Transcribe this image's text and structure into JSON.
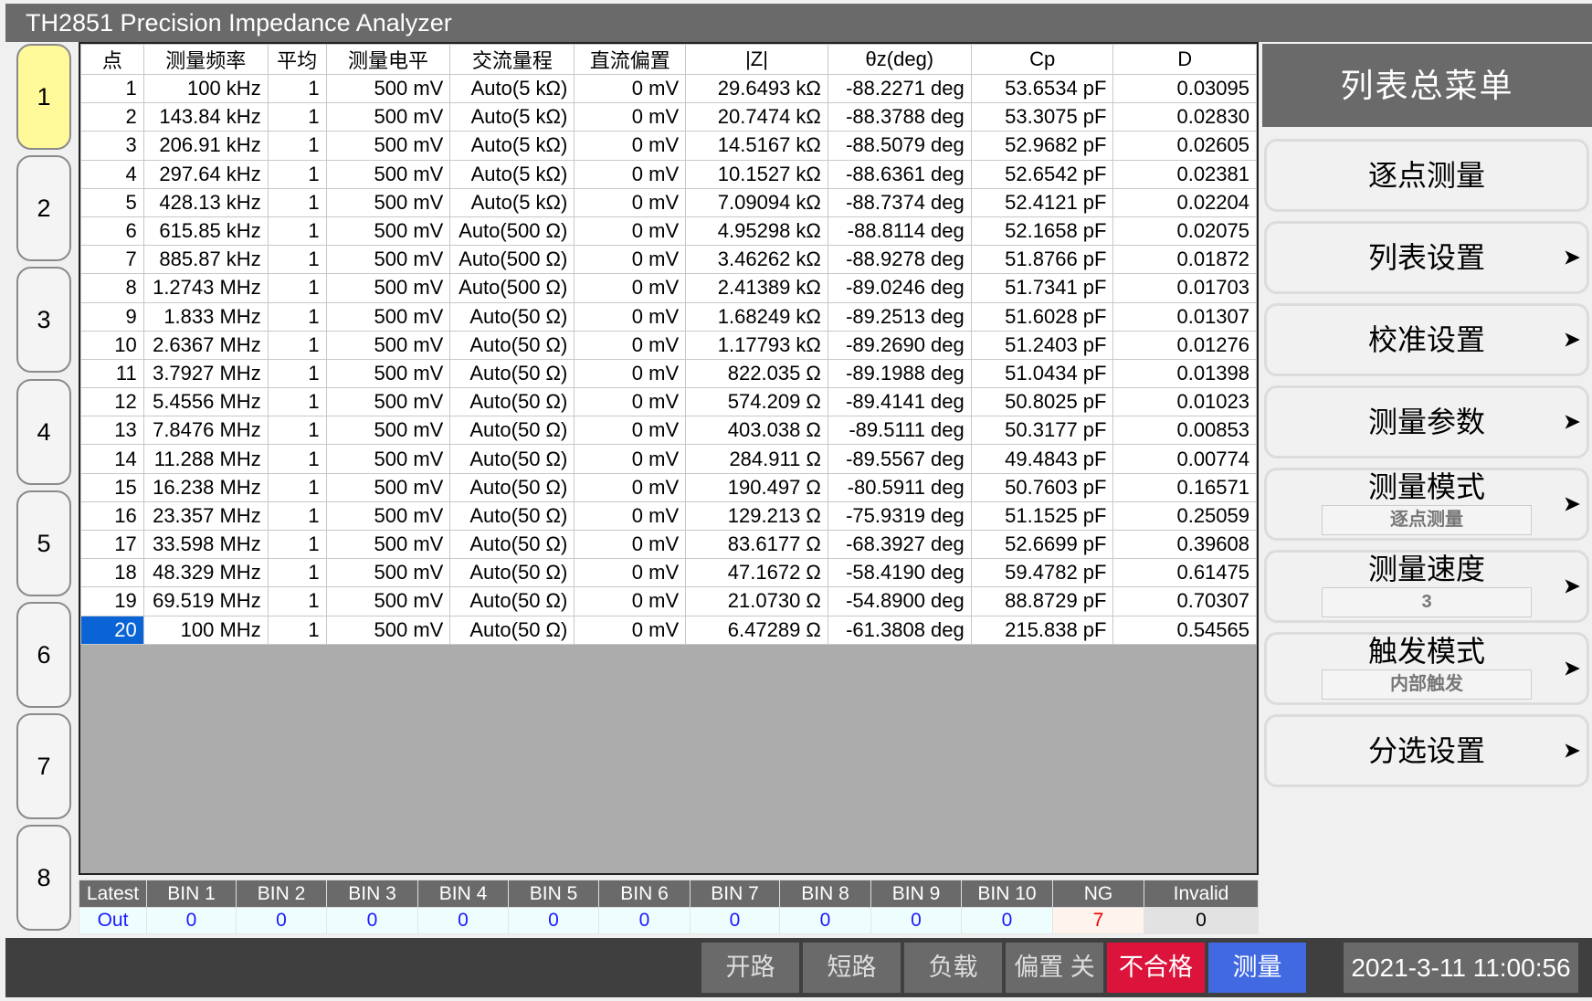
{
  "window": {
    "title": "TH2851 Precision Impedance Analyzer"
  },
  "left_nav": {
    "pages": [
      "1",
      "2",
      "3",
      "4",
      "5",
      "6",
      "7",
      "8"
    ],
    "active_index": 0
  },
  "table": {
    "columns": [
      "点",
      "测量频率",
      "平均",
      "测量电平",
      "交流量程",
      "直流偏置",
      "|Z|",
      "θz(deg)",
      "Cp",
      "D"
    ],
    "selected_row": 19,
    "rows": [
      [
        "1",
        "100 kHz",
        "1",
        "500 mV",
        "Auto(5 kΩ)",
        "0 mV",
        "29.6493 kΩ",
        "-88.2271 deg",
        "53.6534 pF",
        "0.03095"
      ],
      [
        "2",
        "143.84 kHz",
        "1",
        "500 mV",
        "Auto(5 kΩ)",
        "0 mV",
        "20.7474 kΩ",
        "-88.3788 deg",
        "53.3075 pF",
        "0.02830"
      ],
      [
        "3",
        "206.91 kHz",
        "1",
        "500 mV",
        "Auto(5 kΩ)",
        "0 mV",
        "14.5167 kΩ",
        "-88.5079 deg",
        "52.9682 pF",
        "0.02605"
      ],
      [
        "4",
        "297.64 kHz",
        "1",
        "500 mV",
        "Auto(5 kΩ)",
        "0 mV",
        "10.1527 kΩ",
        "-88.6361 deg",
        "52.6542 pF",
        "0.02381"
      ],
      [
        "5",
        "428.13 kHz",
        "1",
        "500 mV",
        "Auto(5 kΩ)",
        "0 mV",
        "7.09094 kΩ",
        "-88.7374 deg",
        "52.4121 pF",
        "0.02204"
      ],
      [
        "6",
        "615.85 kHz",
        "1",
        "500 mV",
        "Auto(500 Ω)",
        "0 mV",
        "4.95298 kΩ",
        "-88.8114 deg",
        "52.1658 pF",
        "0.02075"
      ],
      [
        "7",
        "885.87 kHz",
        "1",
        "500 mV",
        "Auto(500 Ω)",
        "0 mV",
        "3.46262 kΩ",
        "-88.9278 deg",
        "51.8766 pF",
        "0.01872"
      ],
      [
        "8",
        "1.2743 MHz",
        "1",
        "500 mV",
        "Auto(500 Ω)",
        "0 mV",
        "2.41389 kΩ",
        "-89.0246 deg",
        "51.7341 pF",
        "0.01703"
      ],
      [
        "9",
        "1.833 MHz",
        "1",
        "500 mV",
        "Auto(50 Ω)",
        "0 mV",
        "1.68249 kΩ",
        "-89.2513 deg",
        "51.6028 pF",
        "0.01307"
      ],
      [
        "10",
        "2.6367 MHz",
        "1",
        "500 mV",
        "Auto(50 Ω)",
        "0 mV",
        "1.17793 kΩ",
        "-89.2690 deg",
        "51.2403 pF",
        "0.01276"
      ],
      [
        "11",
        "3.7927 MHz",
        "1",
        "500 mV",
        "Auto(50 Ω)",
        "0 mV",
        "822.035 Ω",
        "-89.1988 deg",
        "51.0434 pF",
        "0.01398"
      ],
      [
        "12",
        "5.4556 MHz",
        "1",
        "500 mV",
        "Auto(50 Ω)",
        "0 mV",
        "574.209 Ω",
        "-89.4141 deg",
        "50.8025 pF",
        "0.01023"
      ],
      [
        "13",
        "7.8476 MHz",
        "1",
        "500 mV",
        "Auto(50 Ω)",
        "0 mV",
        "403.038 Ω",
        "-89.5111 deg",
        "50.3177 pF",
        "0.00853"
      ],
      [
        "14",
        "11.288 MHz",
        "1",
        "500 mV",
        "Auto(50 Ω)",
        "0 mV",
        "284.911 Ω",
        "-89.5567 deg",
        "49.4843 pF",
        "0.00774"
      ],
      [
        "15",
        "16.238 MHz",
        "1",
        "500 mV",
        "Auto(50 Ω)",
        "0 mV",
        "190.497 Ω",
        "-80.5911 deg",
        "50.7603 pF",
        "0.16571"
      ],
      [
        "16",
        "23.357 MHz",
        "1",
        "500 mV",
        "Auto(50 Ω)",
        "0 mV",
        "129.213 Ω",
        "-75.9319 deg",
        "51.1525 pF",
        "0.25059"
      ],
      [
        "17",
        "33.598 MHz",
        "1",
        "500 mV",
        "Auto(50 Ω)",
        "0 mV",
        "83.6177 Ω",
        "-68.3927 deg",
        "52.6699 pF",
        "0.39608"
      ],
      [
        "18",
        "48.329 MHz",
        "1",
        "500 mV",
        "Auto(50 Ω)",
        "0 mV",
        "47.1672 Ω",
        "-58.4190 deg",
        "59.4782 pF",
        "0.61475"
      ],
      [
        "19",
        "69.519 MHz",
        "1",
        "500 mV",
        "Auto(50 Ω)",
        "0 mV",
        "21.0730 Ω",
        "-54.8900 deg",
        "88.8729 pF",
        "0.70307"
      ],
      [
        "20",
        "100 MHz",
        "1",
        "500 mV",
        "Auto(50 Ω)",
        "0 mV",
        "6.47289 Ω",
        "-61.3808 deg",
        "215.838 pF",
        "0.54565"
      ]
    ]
  },
  "bins": {
    "headers": [
      "Latest",
      "BIN 1",
      "BIN 2",
      "BIN 3",
      "BIN 4",
      "BIN 5",
      "BIN 6",
      "BIN 7",
      "BIN 8",
      "BIN 9",
      "BIN 10",
      "NG",
      "Invalid"
    ],
    "values": [
      "Out",
      "0",
      "0",
      "0",
      "0",
      "0",
      "0",
      "0",
      "0",
      "0",
      "0",
      "7",
      "0"
    ]
  },
  "menu": {
    "title": "列表总菜单",
    "items": [
      {
        "label": "逐点测量",
        "arrow": false
      },
      {
        "label": "列表设置",
        "arrow": true
      },
      {
        "label": "校准设置",
        "arrow": true
      },
      {
        "label": "测量参数",
        "arrow": true
      },
      {
        "label": "测量模式",
        "value": "逐点测量",
        "arrow": true
      },
      {
        "label": "测量速度",
        "value": "3",
        "arrow": true
      },
      {
        "label": "触发模式",
        "value": "内部触发",
        "arrow": true
      },
      {
        "label": "分选设置",
        "arrow": true
      }
    ],
    "arrow_glyph": "➤"
  },
  "bottom_bar": {
    "buttons": [
      {
        "label": "开路",
        "color": "#6a6a6a"
      },
      {
        "label": "短路",
        "color": "#6a6a6a"
      },
      {
        "label": "负载",
        "color": "#6a6a6a"
      },
      {
        "label": "偏置 关",
        "color": "#6a6a6a"
      },
      {
        "label": "不合格",
        "color": "#dc143c"
      },
      {
        "label": "测量",
        "color": "#4169e1"
      }
    ],
    "datetime": "2021-3-11 11:00:56"
  }
}
